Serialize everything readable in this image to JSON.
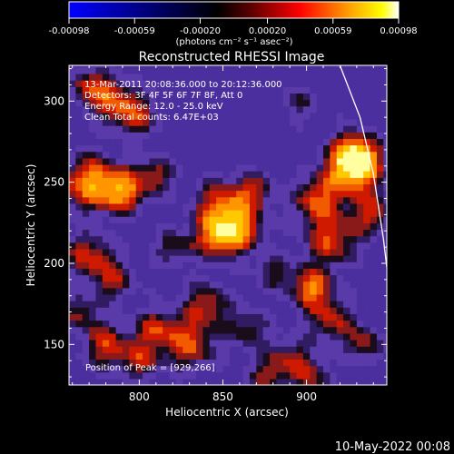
{
  "colorbar": {
    "ticks": [
      "-0.00098",
      "-0.00059",
      "-0.00020",
      "0.00020",
      "0.00059",
      "0.00098"
    ],
    "unit_label": "(photons cm⁻² s⁻¹ asec⁻²)",
    "range": [
      -0.00098,
      0.00098
    ],
    "colors": [
      "#0000ff",
      "#000000",
      "#ff0000",
      "#ffff00",
      "#ffffff"
    ]
  },
  "chart_data": {
    "type": "heatmap",
    "title": "Reconstructed RHESSI Image",
    "xlabel": "Heliocentric X (arcsec)",
    "ylabel": "Heliocentric Y (arcsec)",
    "xlim": [
      758,
      948
    ],
    "ylim": [
      125,
      322
    ],
    "xticks": [
      800,
      850,
      900
    ],
    "yticks": [
      150,
      200,
      250,
      300
    ],
    "annotations": [
      "13-Mar-2011 20:08:36.000 to 20:12:36.000",
      "Detectors: 3F 4F 5F 6F 7F 8F, Att 0",
      "Energy Range: 12.0 - 25.0 keV",
      "Clean    Total counts: 6.47E+03"
    ],
    "peak_label": "Position of Peak = [929,266]",
    "peak": [
      929,
      266
    ],
    "limb_points": [
      [
        920,
        322
      ],
      [
        932,
        290
      ],
      [
        940,
        255
      ],
      [
        946,
        215
      ],
      [
        950,
        180
      ]
    ]
  },
  "footer_date": "10-May-2022 00:08"
}
